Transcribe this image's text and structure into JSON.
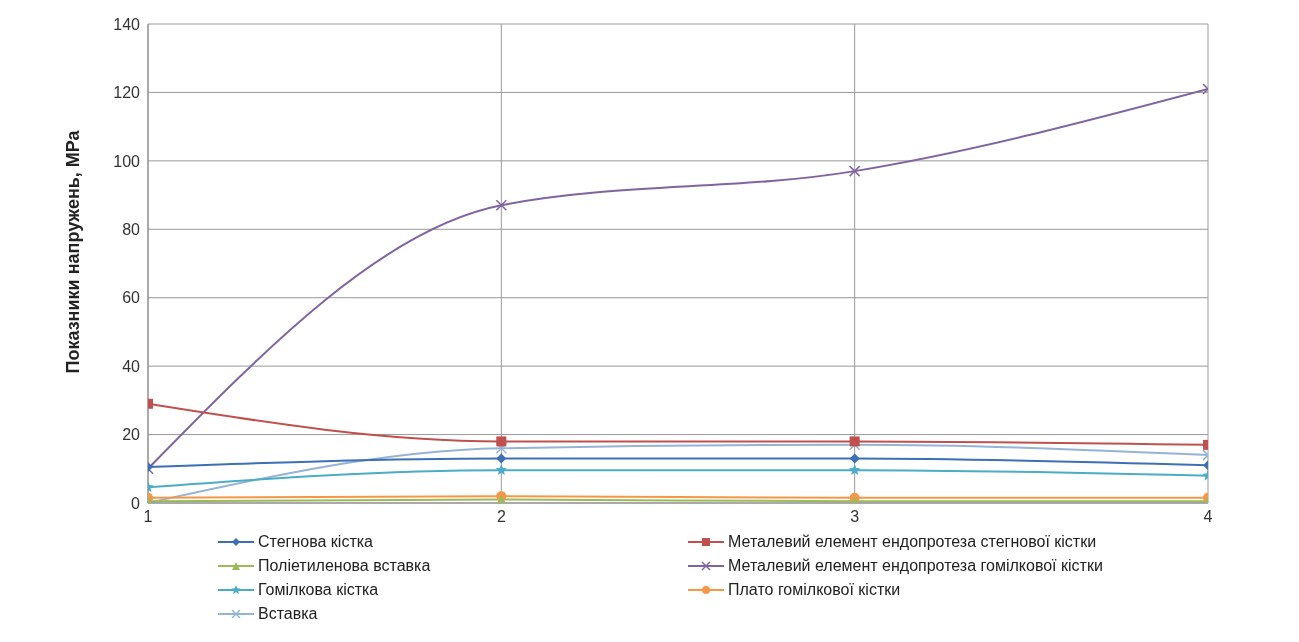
{
  "chart_data": {
    "type": "line",
    "ylabel": "Показники напружень, МРа",
    "x": [
      1,
      2,
      3,
      4
    ],
    "xlim": [
      1,
      4
    ],
    "xticks": [
      1,
      2,
      3,
      4
    ],
    "ylim": [
      0,
      140
    ],
    "yticks": [
      0,
      20,
      40,
      60,
      80,
      100,
      120,
      140
    ],
    "grid": true,
    "legend": "bottom",
    "series": [
      {
        "name": "Стегнова кістка",
        "color": "#3d6fb6",
        "marker": "diamond",
        "values": [
          10.5,
          13,
          13,
          11
        ]
      },
      {
        "name": "Металевий елемент ендопротеза стегнової кістки",
        "color": "#c0504d",
        "marker": "square",
        "values": [
          29,
          18,
          18,
          17
        ]
      },
      {
        "name": "Поліетиленова вставка",
        "color": "#9bbb59",
        "marker": "triangle",
        "values": [
          0.5,
          1,
          0.5,
          0.5
        ]
      },
      {
        "name": "Металевий елемент ендопротеза гомілкової кістки",
        "color": "#8064a2",
        "marker": "cross",
        "values": [
          10,
          87,
          97,
          121
        ]
      },
      {
        "name": "Гомілкова кістка",
        "color": "#4bacc6",
        "marker": "star",
        "values": [
          4.6,
          9.6,
          9.6,
          8
        ]
      },
      {
        "name": "Плато гомілкової кістки",
        "color": "#f79646",
        "marker": "circle",
        "values": [
          1.5,
          2,
          1.5,
          1.5
        ]
      },
      {
        "name": "Вставка",
        "color": "#95b3d7",
        "marker": "cross",
        "values": [
          0,
          16,
          17,
          14
        ]
      }
    ]
  }
}
